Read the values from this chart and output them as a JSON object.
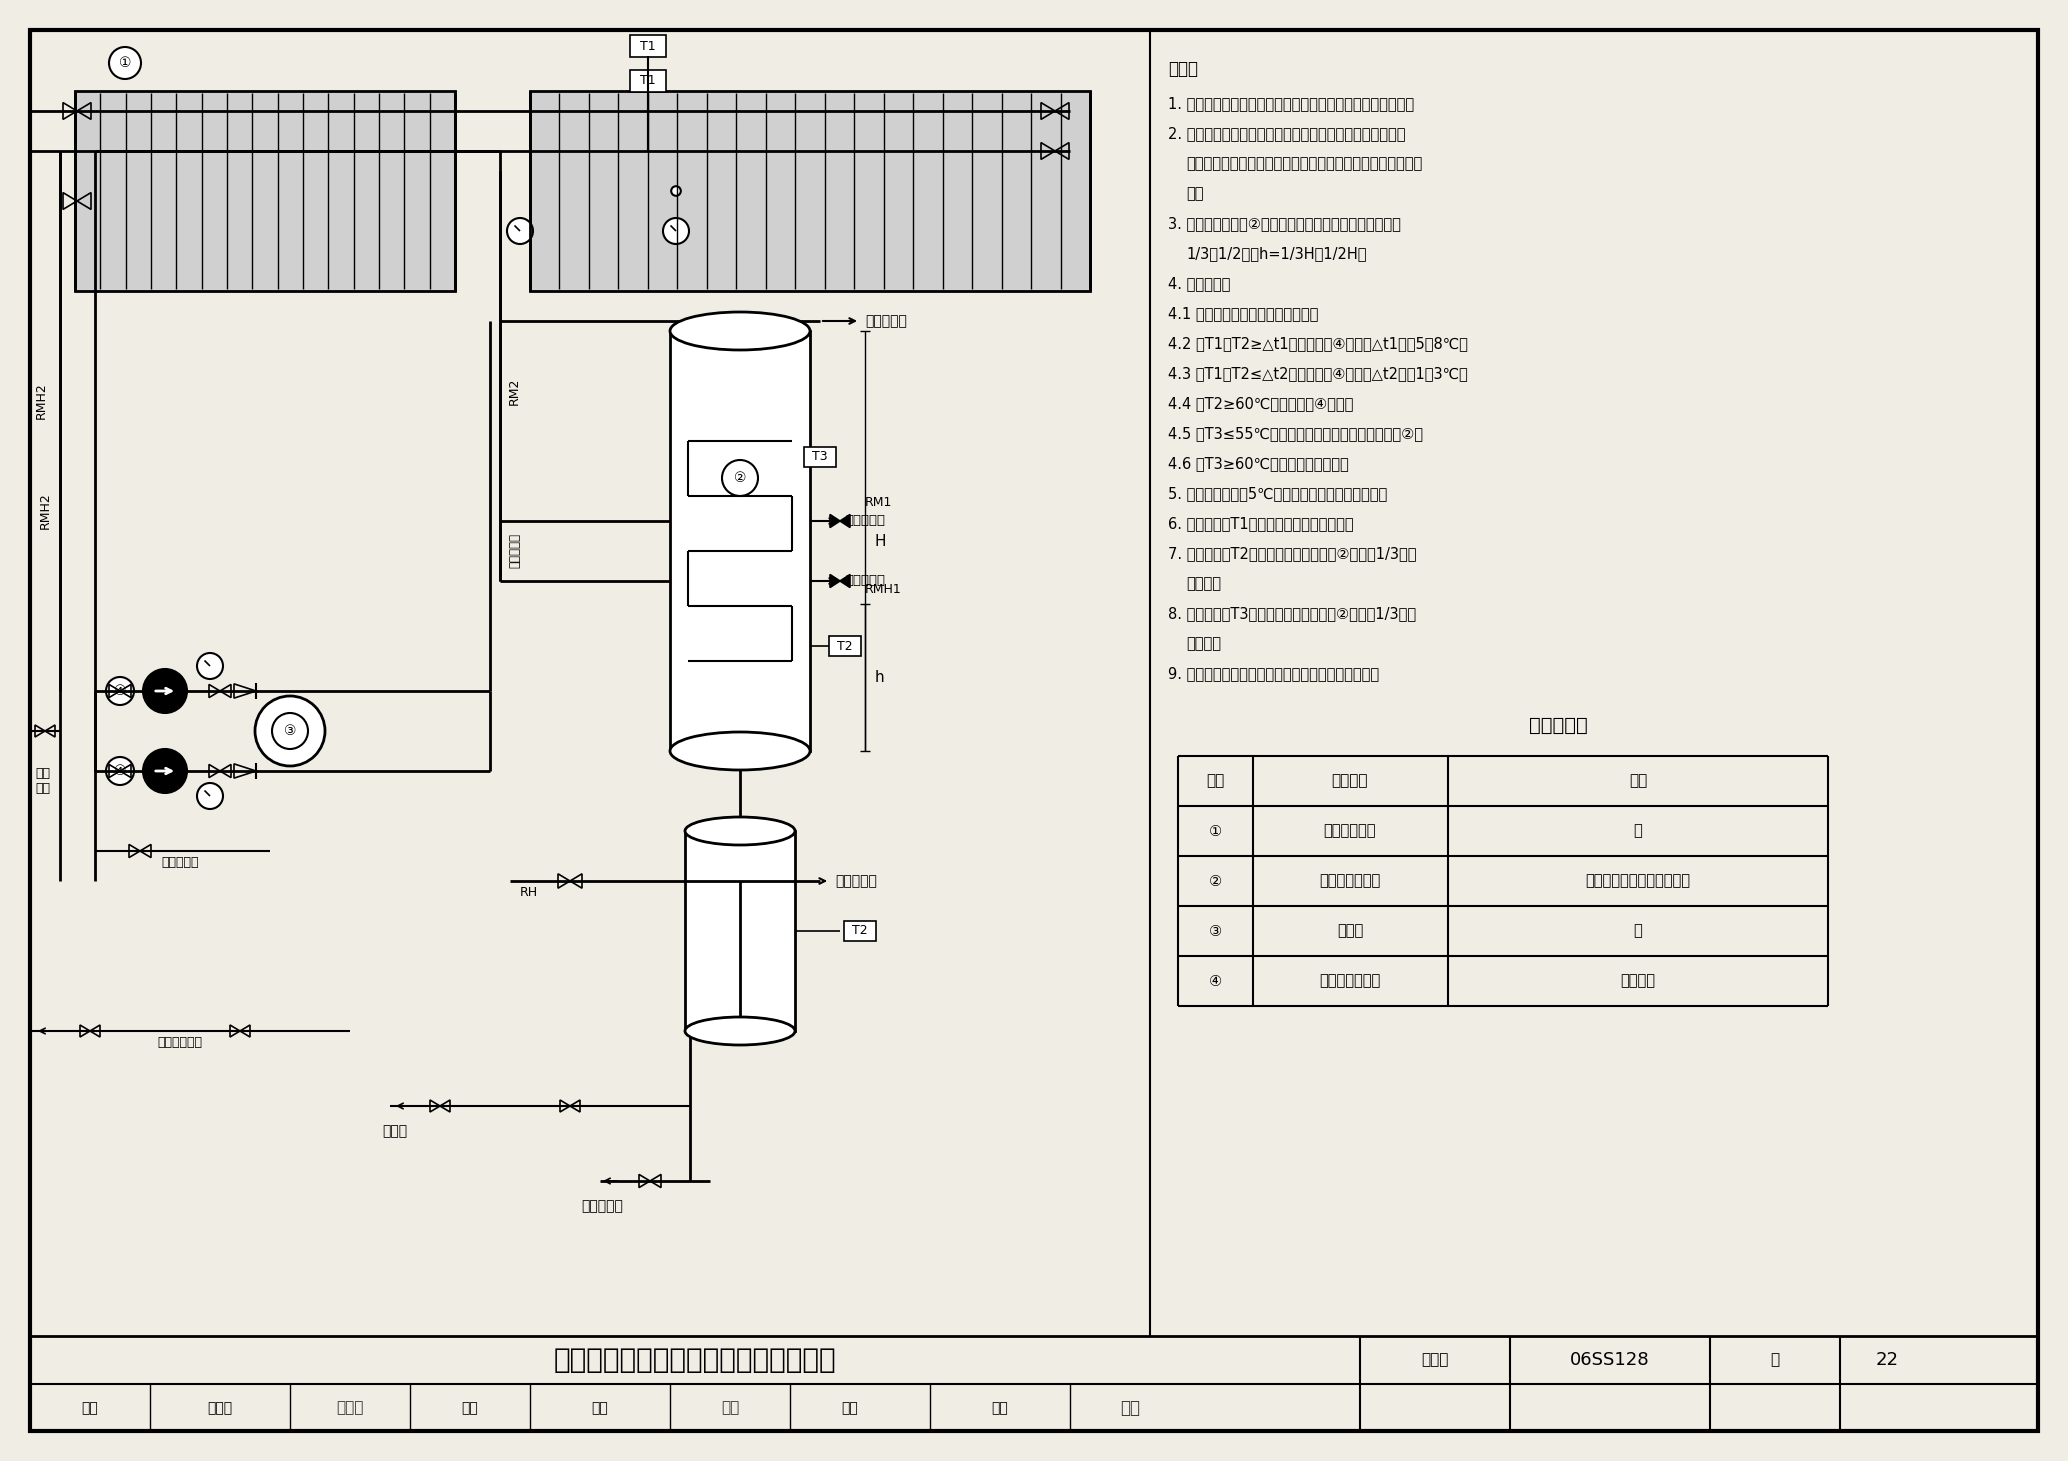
{
  "bg_color": "#f0ede5",
  "line_color": "#000000",
  "title": "强制循环间接加热系统原理图（单罐）",
  "atlas_no": "06SS128",
  "page": "22",
  "notes_title": "说明：",
  "note_lines": [
    "1. 本系统适用于自来水压力能满足系统最不利点水压的情况。",
    "2. 本系统宜采用平板型、玻璃金属、热管式真空管型等承压",
    "式太阳能集热器。集热器设在屋顶，其它设备可灵活布置在室",
    "内。",
    "3. 容积式水加热器②热水回水入口上的容积宜取总容积的",
    "1/3～1/2，即h=1/3H～1/2H。",
    "4. 控制原理：",
    "4.1 本系统采用温差循环控制原理；",
    "4.2 当T1－T2≥△t1时，循环泵④启动，△t1宜取5～8℃；",
    "4.3 当T1－T2≤△t2时，循环泵④关闭，△t2宜取1～3℃；",
    "4.4 当T2≥60℃时，循环泵④关闭；",
    "4.5 当T3≤55℃时，供给热媒加热容积式水加热器②；",
    "4.6 当T3≥60℃时，热媒停止供给。",
    "5. 日最低气温低于5℃的地区，工质应采用防冻液。",
    "6. 温度传感器T1设在集热系统出口最高点。",
    "7. 温度传感器T2设在距容积式水加热器②底部约1/3罐体",
    "高度处。",
    "8. 温度传感器T3设在距容积式水加热器②顶部约1/3罐体",
    "高度处。",
    "9. 本图是按照真空管太阳能集热器串联方式绘制的。"
  ],
  "table_title": "主要设备表",
  "table_headers": [
    "编号",
    "设备名称",
    "备注"
  ],
  "table_rows": [
    [
      "①",
      "太阳能集热器",
      "－"
    ],
    [
      "②",
      "容积式水加热器",
      "立式，兼具贮热、供热功能"
    ],
    [
      "③",
      "膨胀罐",
      "－"
    ],
    [
      "④",
      "集热系统循环泵",
      "一用一备"
    ]
  ]
}
